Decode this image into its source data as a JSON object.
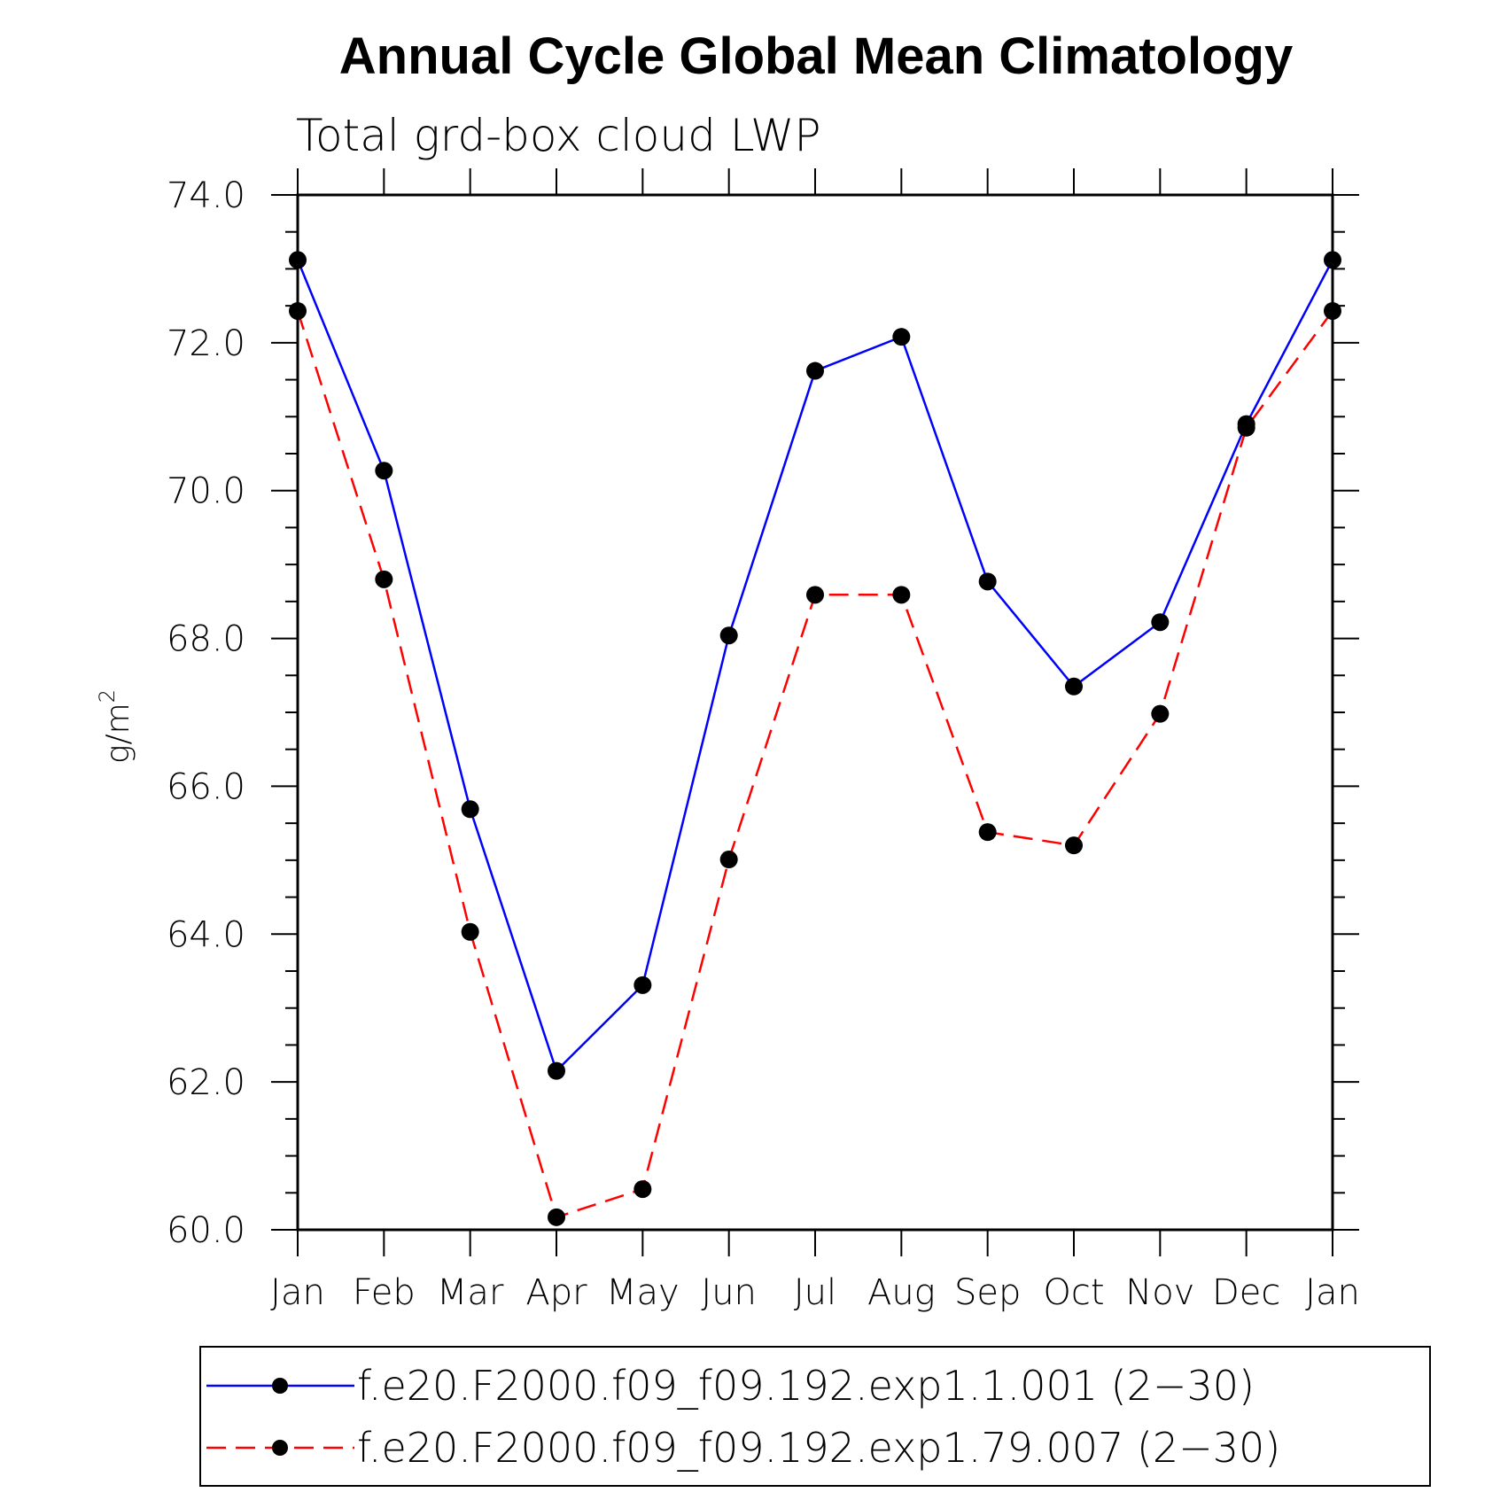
{
  "chart_data": {
    "type": "line",
    "title": "Annual Cycle Global Mean Climatology",
    "subtitle": "Total grd-box cloud LWP",
    "ylabel": "g/m",
    "ylabel_superscript": "2",
    "ylim": [
      60.0,
      74.0
    ],
    "y_major_ticks": [
      "60.0",
      "62.0",
      "64.0",
      "66.0",
      "68.0",
      "70.0",
      "72.0",
      "74.0"
    ],
    "categories": [
      "Jan",
      "Feb",
      "Mar",
      "Apr",
      "May",
      "Jun",
      "Jul",
      "Aug",
      "Sep",
      "Oct",
      "Nov",
      "Dec",
      "Jan"
    ],
    "grid": false,
    "legend_position": "bottom",
    "series": [
      {
        "name": "f.e20.F2000.f09_f09.192.exp1.1.001 (2−30)",
        "color": "#0000ff",
        "line_style": "solid",
        "values": [
          73.12,
          70.27,
          65.69,
          62.15,
          63.31,
          68.04,
          71.62,
          72.08,
          68.77,
          67.35,
          68.22,
          70.9,
          73.12
        ]
      },
      {
        "name": "f.e20.F2000.f09_f09.192.exp1.79.007 (2−30)",
        "color": "#ff0000",
        "line_style": "dashed",
        "values": [
          72.43,
          68.8,
          64.03,
          60.17,
          60.55,
          65.01,
          68.59,
          68.59,
          65.38,
          65.2,
          66.98,
          70.85,
          72.43
        ]
      }
    ]
  }
}
